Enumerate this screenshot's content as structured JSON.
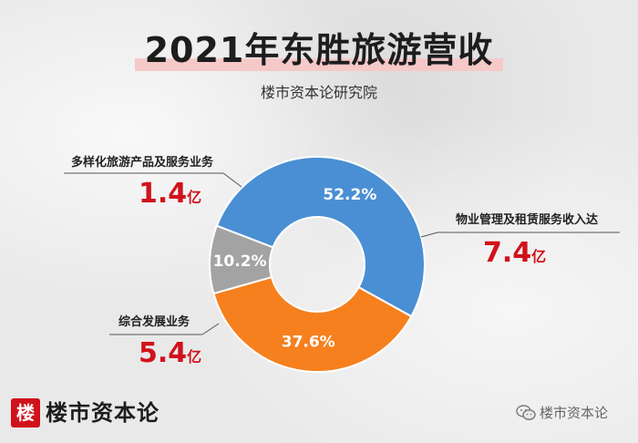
{
  "header": {
    "title": "2021年东胜旅游营收",
    "subtitle": "楼市资本论研究院"
  },
  "colors": {
    "property_service": "#4a8fd3",
    "comprehensive_dev": "#f6801e",
    "diversified_tourism": "#a3a3a3",
    "value_red": "#d0121b",
    "title_highlight": "#f6c9c9"
  },
  "callouts": {
    "property_service": {
      "label": "物业管理及租赁服务收入达",
      "value": "7.4",
      "unit": "亿"
    },
    "comprehensive_dev": {
      "label": "综合发展业务",
      "value": "5.4",
      "unit": "亿"
    },
    "diversified_tourism": {
      "label": "多样化旅游产品及服务业务",
      "value": "1.4",
      "unit": "亿"
    }
  },
  "chart_data": {
    "type": "pie",
    "donut": true,
    "categories": [
      "物业管理及租赁服务收入达",
      "综合发展业务",
      "多样化旅游产品及服务业务"
    ],
    "values": [
      52.2,
      37.6,
      10.2
    ],
    "value_labels": [
      "52.2%",
      "37.6%",
      "10.2%"
    ],
    "amounts": [
      "7.4亿",
      "5.4亿",
      "1.4亿"
    ],
    "title": "2021年东胜旅游营收",
    "subtitle": "楼市资本论研究院",
    "legend": "none"
  },
  "footer": {
    "logo_char": "楼",
    "brand": "楼市资本论",
    "watermark": "楼市资本论",
    "watermark_icon": "wechat-icon"
  }
}
